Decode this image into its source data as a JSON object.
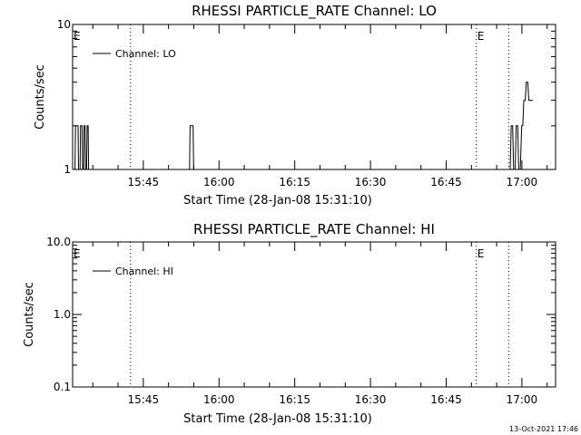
{
  "footer": {
    "timestamp": "13-Oct-2021 17:46"
  },
  "chart_data": [
    {
      "type": "line",
      "title": "RHESSI PARTICLE_RATE Channel: LO",
      "xlabel": "Start Time (28-Jan-08 15:31:10)",
      "ylabel": "Counts/sec",
      "yscale": "log",
      "xlim_min": [
        -0.17,
        95.5
      ],
      "ylim": [
        1,
        10
      ],
      "yticks": [
        1,
        10
      ],
      "ytick_labels": [
        "1",
        "10"
      ],
      "xticks_min": [
        13.83,
        28.83,
        43.83,
        58.83,
        73.83,
        88.83
      ],
      "xtick_labels": [
        "15:45",
        "16:00",
        "16:15",
        "16:30",
        "16:45",
        "17:00"
      ],
      "legend": {
        "label": "Channel: LO",
        "position": "top-left"
      },
      "markers": [
        {
          "label": "E",
          "x_min": -0.17
        },
        {
          "label": "E",
          "x_min": 79.8
        }
      ],
      "dotted_lines_min": [
        11.3,
        79.8,
        86.2
      ],
      "series": [
        {
          "x": [
            0,
            0.3,
            0.4,
            0.9,
            1.0,
            1.3,
            1.4,
            1.7,
            1.8,
            2.0,
            2.1,
            2.3,
            2.4,
            2.6,
            2.7,
            2.9,
            3.0,
            3.2,
            3.3,
            3.8,
            3.9,
            22.5,
            22.6,
            23.0,
            23.1,
            23.3,
            23.4,
            23.7,
            23.8,
            24.5,
            24.6,
            86.5,
            86.7,
            87.0,
            87.2,
            87.5,
            87.7,
            88.0,
            88.2,
            88.5,
            88.8,
            89.0,
            89.2,
            89.5,
            89.7,
            90.0,
            90.2,
            90.5,
            91.0
          ],
          "y": [
            1,
            1,
            2,
            2,
            1,
            1,
            2,
            2,
            1,
            1,
            2,
            2,
            1,
            1,
            2,
            2,
            1,
            1,
            1,
            1,
            1,
            1,
            1,
            1,
            2,
            2,
            2,
            2,
            1,
            1,
            1,
            1,
            2,
            2,
            1,
            1,
            2,
            2,
            1,
            1,
            2,
            2,
            3,
            3,
            4,
            4,
            3,
            3,
            3
          ]
        }
      ]
    },
    {
      "type": "line",
      "title": "RHESSI PARTICLE_RATE Channel: HI",
      "xlabel": "Start Time (28-Jan-08 15:31:10)",
      "ylabel": "Counts/sec",
      "yscale": "log",
      "xlim_min": [
        -0.17,
        95.5
      ],
      "ylim": [
        0.1,
        10
      ],
      "yticks": [
        0.1,
        1,
        10
      ],
      "ytick_labels": [
        "0.1",
        "1.0",
        "10.0"
      ],
      "xticks_min": [
        13.83,
        28.83,
        43.83,
        58.83,
        73.83,
        88.83
      ],
      "xtick_labels": [
        "15:45",
        "16:00",
        "16:15",
        "16:30",
        "16:45",
        "17:00"
      ],
      "legend": {
        "label": "Channel: HI",
        "position": "top-left"
      },
      "markers": [
        {
          "label": "E",
          "x_min": -0.17
        },
        {
          "label": "E",
          "x_min": 79.8
        }
      ],
      "dotted_lines_min": [
        11.3,
        79.8,
        86.2
      ],
      "series": []
    }
  ]
}
